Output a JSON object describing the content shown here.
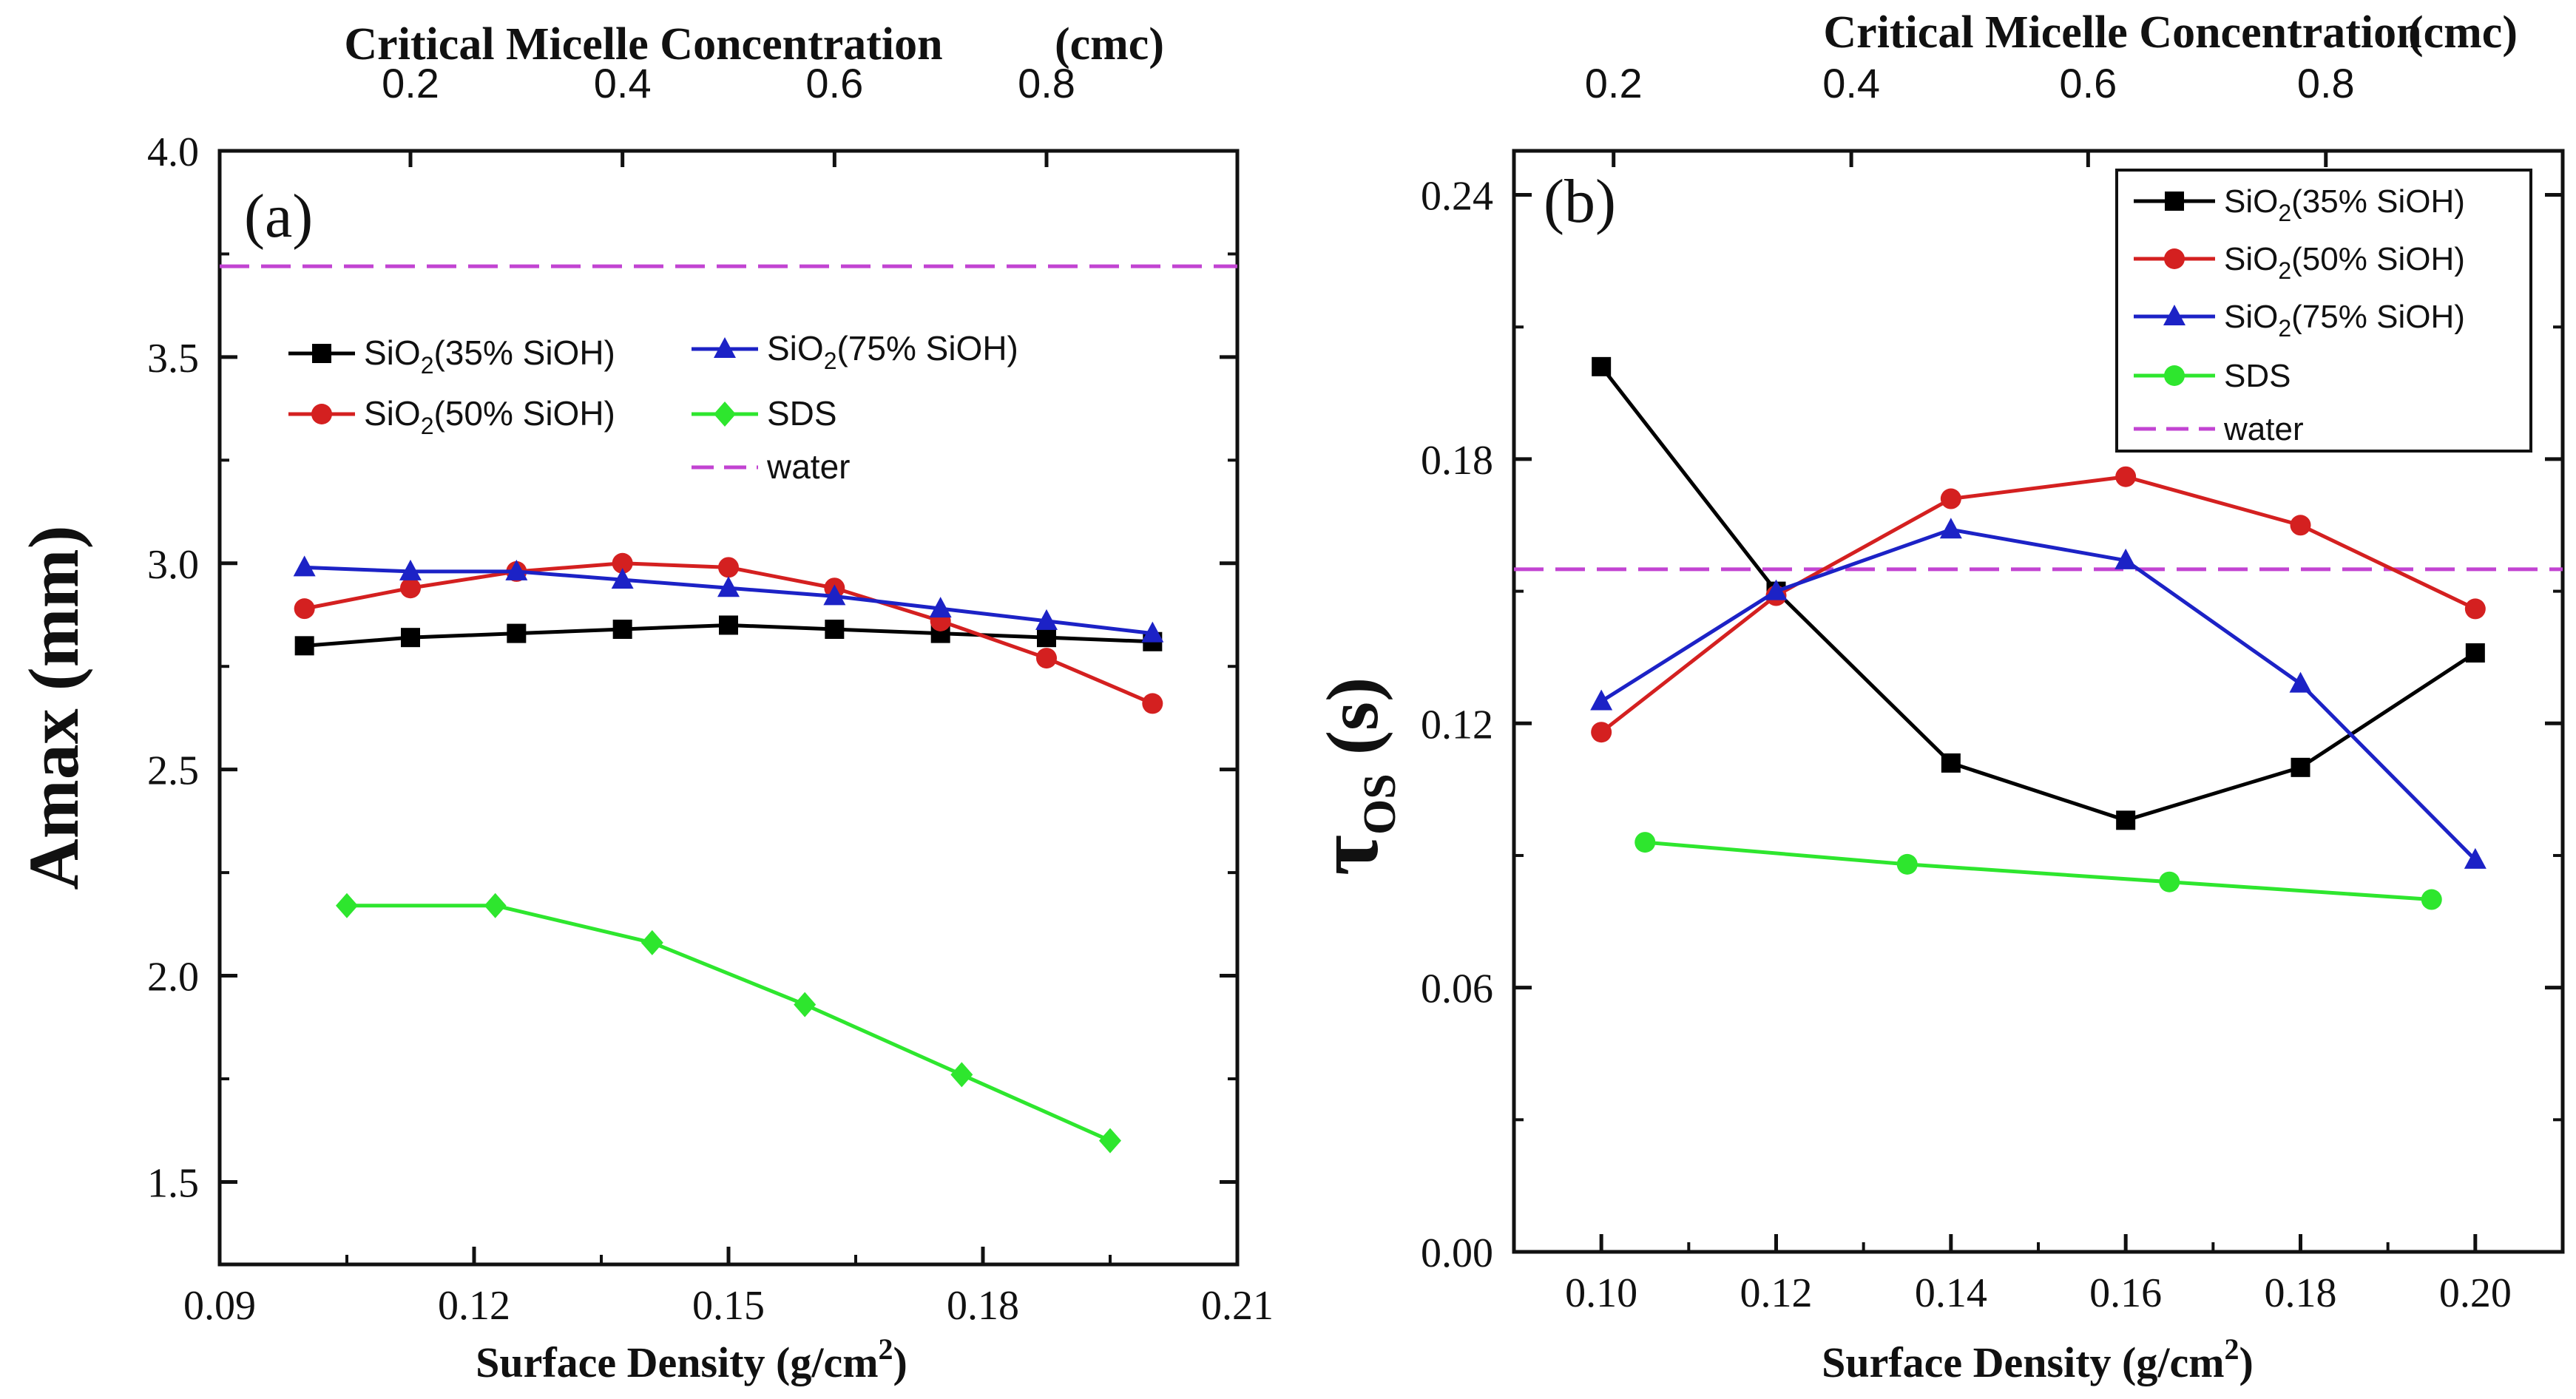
{
  "chart_data": [
    {
      "id": "a",
      "type": "line",
      "panel_label": "(a)",
      "xlabel": "Surface Density (g/cm",
      "xlabel_sup": "2",
      "xlabel_close": ")",
      "ylabel": "Amax (mm)",
      "top_title": "Critical Micelle Concentration",
      "top_unit": "(cmc)",
      "xlim": [
        0.09,
        0.21
      ],
      "ylim": [
        1.3,
        4.0
      ],
      "xticks": [
        0.09,
        0.12,
        0.15,
        0.18,
        0.21
      ],
      "xtick_labels": [
        "0.09",
        "0.12",
        "0.15",
        "0.18",
        "0.21"
      ],
      "yticks": [
        1.5,
        2.0,
        2.5,
        3.0,
        3.5,
        4.0
      ],
      "ytick_labels": [
        "1.5",
        "2.0",
        "2.5",
        "3.0",
        "3.5",
        "4.0"
      ],
      "top_ticks": [
        0.1125,
        0.1375,
        0.1625,
        0.1875
      ],
      "top_tick_labels": [
        "0.2",
        "0.4",
        "0.6",
        "0.8"
      ],
      "series": [
        {
          "name": "SiO2(35% SiOH)",
          "label_pre": "SiO",
          "label_sub": "2",
          "label_post": "(35% SiOH)",
          "color": "#000000",
          "marker": "square",
          "x": [
            0.1,
            0.1125,
            0.125,
            0.1375,
            0.15,
            0.1625,
            0.175,
            0.1875,
            0.2
          ],
          "values": [
            2.8,
            2.82,
            2.83,
            2.84,
            2.85,
            2.84,
            2.83,
            2.82,
            2.81
          ]
        },
        {
          "name": "SiO2(50% SiOH)",
          "label_pre": "SiO",
          "label_sub": "2",
          "label_post": "(50% SiOH)",
          "color": "#d42020",
          "marker": "circle",
          "x": [
            0.1,
            0.1125,
            0.125,
            0.1375,
            0.15,
            0.1625,
            0.175,
            0.1875,
            0.2
          ],
          "values": [
            2.89,
            2.94,
            2.98,
            3.0,
            2.99,
            2.94,
            2.86,
            2.77,
            2.66
          ]
        },
        {
          "name": "SiO2(75% SiOH)",
          "label_pre": "SiO",
          "label_sub": "2",
          "label_post": "(75% SiOH)",
          "color": "#1c22c6",
          "marker": "triangle",
          "x": [
            0.1,
            0.1125,
            0.125,
            0.1375,
            0.15,
            0.1625,
            0.175,
            0.1875,
            0.2
          ],
          "values": [
            2.99,
            2.98,
            2.98,
            2.96,
            2.94,
            2.92,
            2.89,
            2.86,
            2.83
          ]
        },
        {
          "name": "SDS",
          "label_pre": "SDS",
          "label_sub": "",
          "label_post": "",
          "color": "#2ee62e",
          "marker": "diamond",
          "x": [
            0.105,
            0.1225,
            0.141,
            0.159,
            0.1775,
            0.195
          ],
          "values": [
            2.17,
            2.17,
            2.08,
            1.93,
            1.76,
            1.6
          ]
        }
      ],
      "reference": {
        "name": "water",
        "label": "water",
        "color": "#c244d2",
        "value": 3.72
      }
    },
    {
      "id": "b",
      "type": "line",
      "panel_label": "(b)",
      "xlabel": "Surface Density  (g/cm",
      "xlabel_sup": "2",
      "xlabel_close": ")",
      "ylabel": "τ",
      "ylabel_sub": "OS",
      "ylabel_unit": " (s)",
      "top_title": "Critical Micelle Concentration",
      "top_unit": "(cmc)",
      "xlim": [
        0.09,
        0.21
      ],
      "ylim": [
        0.0,
        0.25
      ],
      "xticks": [
        0.1,
        0.12,
        0.14,
        0.16,
        0.18,
        0.2
      ],
      "xtick_labels": [
        "0.10",
        "0.12",
        "0.14",
        "0.16",
        "0.18",
        "0.20"
      ],
      "yticks": [
        0.0,
        0.06,
        0.12,
        0.18,
        0.24
      ],
      "ytick_labels": [
        "0.00",
        "0.06",
        "0.12",
        "0.18",
        "0.24"
      ],
      "top_ticks": [
        0.1014,
        0.1286,
        0.1557,
        0.1829
      ],
      "top_tick_labels": [
        "0.2",
        "0.4",
        "0.6",
        "0.8"
      ],
      "series": [
        {
          "name": "SiO2(35% SiOH)",
          "label_pre": "SiO",
          "label_sub": "2",
          "label_post": "(35% SiOH)",
          "color": "#000000",
          "marker": "square",
          "x": [
            0.1,
            0.12,
            0.14,
            0.16,
            0.18,
            0.2
          ],
          "values": [
            0.201,
            0.15,
            0.111,
            0.098,
            0.11,
            0.136
          ]
        },
        {
          "name": "SiO2(50% SiOH)",
          "label_pre": "SiO",
          "label_sub": "2",
          "label_post": "(50% SiOH)",
          "color": "#d42020",
          "marker": "circle",
          "x": [
            0.1,
            0.12,
            0.14,
            0.16,
            0.18,
            0.2
          ],
          "values": [
            0.118,
            0.149,
            0.171,
            0.176,
            0.165,
            0.146
          ]
        },
        {
          "name": "SiO2(75% SiOH)",
          "label_pre": "SiO",
          "label_sub": "2",
          "label_post": "(75% SiOH)",
          "color": "#1c22c6",
          "marker": "triangle",
          "x": [
            0.1,
            0.12,
            0.14,
            0.16,
            0.18,
            0.2
          ],
          "values": [
            0.125,
            0.15,
            0.164,
            0.157,
            0.129,
            0.089
          ]
        },
        {
          "name": "SDS",
          "label_pre": "SDS",
          "label_sub": "",
          "label_post": "",
          "color": "#2ee62e",
          "marker": "circle",
          "x": [
            0.105,
            0.135,
            0.165,
            0.195
          ],
          "values": [
            0.093,
            0.088,
            0.084,
            0.08
          ]
        }
      ],
      "reference": {
        "name": "water",
        "label": "water",
        "color": "#c244d2",
        "value": 0.155
      }
    }
  ]
}
